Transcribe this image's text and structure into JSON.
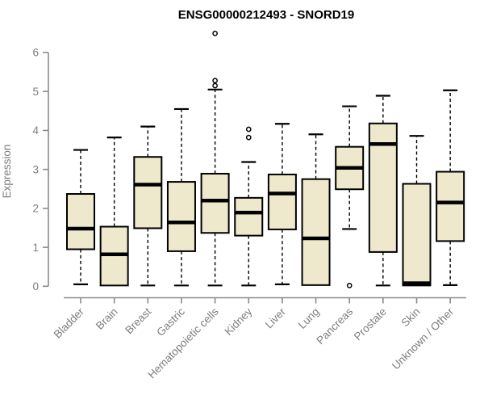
{
  "title": "ENSG00000212493 - SNORD19",
  "chart_data": {
    "type": "boxplot",
    "title": "ENSG00000212493 - SNORD19",
    "xlabel": "",
    "ylabel": "Expression",
    "ylim": [
      0,
      6
    ],
    "yticks": [
      0,
      1,
      2,
      3,
      4,
      5,
      6
    ],
    "grid": false,
    "legend": "none",
    "categories": [
      "Bladder",
      "Brain",
      "Breast",
      "Gastric",
      "Hematopoietic cells",
      "Kidney",
      "Liver",
      "Lung",
      "Pancreas",
      "Prostate",
      "Skin",
      "Unknown / Other"
    ],
    "series": [
      {
        "name": "Bladder",
        "whisker_low": 0.05,
        "q1": 0.95,
        "median": 1.48,
        "q3": 2.37,
        "whisker_high": 3.5,
        "outliers": []
      },
      {
        "name": "Brain",
        "whisker_low": 0.02,
        "q1": 0.02,
        "median": 0.82,
        "q3": 1.53,
        "whisker_high": 3.82,
        "outliers": []
      },
      {
        "name": "Breast",
        "whisker_low": 0.02,
        "q1": 1.49,
        "median": 2.61,
        "q3": 3.32,
        "whisker_high": 4.1,
        "outliers": []
      },
      {
        "name": "Gastric",
        "whisker_low": 0.02,
        "q1": 0.9,
        "median": 1.64,
        "q3": 2.68,
        "whisker_high": 4.55,
        "outliers": []
      },
      {
        "name": "Hematopoietic cells",
        "whisker_low": 0.02,
        "q1": 1.37,
        "median": 2.2,
        "q3": 2.89,
        "whisker_high": 5.05,
        "outliers": [
          5.15,
          5.28,
          6.49
        ]
      },
      {
        "name": "Kidney",
        "whisker_low": 0.02,
        "q1": 1.3,
        "median": 1.89,
        "q3": 2.27,
        "whisker_high": 3.19,
        "outliers": [
          3.82,
          4.03
        ]
      },
      {
        "name": "Liver",
        "whisker_low": 0.05,
        "q1": 1.46,
        "median": 2.38,
        "q3": 2.87,
        "whisker_high": 4.17,
        "outliers": []
      },
      {
        "name": "Lung",
        "whisker_low": 0.03,
        "q1": 0.03,
        "median": 1.23,
        "q3": 2.75,
        "whisker_high": 3.9,
        "outliers": []
      },
      {
        "name": "Pancreas",
        "whisker_low": 1.47,
        "q1": 2.49,
        "median": 3.04,
        "q3": 3.58,
        "whisker_high": 4.62,
        "outliers": [
          0.02
        ]
      },
      {
        "name": "Prostate",
        "whisker_low": 0.02,
        "q1": 0.88,
        "median": 3.65,
        "q3": 4.18,
        "whisker_high": 4.89,
        "outliers": []
      },
      {
        "name": "Skin",
        "whisker_low": 0.02,
        "q1": 0.02,
        "median": 0.08,
        "q3": 2.63,
        "whisker_high": 3.86,
        "outliers": []
      },
      {
        "name": "Unknown / Other",
        "whisker_low": 0.03,
        "q1": 1.16,
        "median": 2.15,
        "q3": 2.94,
        "whisker_high": 5.03,
        "outliers": []
      }
    ]
  },
  "colors": {
    "box_fill": "#EEE8CD",
    "box_border": "#000000",
    "median": "#000000",
    "whisker": "#000000",
    "outlier": "#000000",
    "axis": "#8A8A8A",
    "tick_label": "#7D7D7D",
    "title": "#000000",
    "background": "#FFFFFF"
  }
}
